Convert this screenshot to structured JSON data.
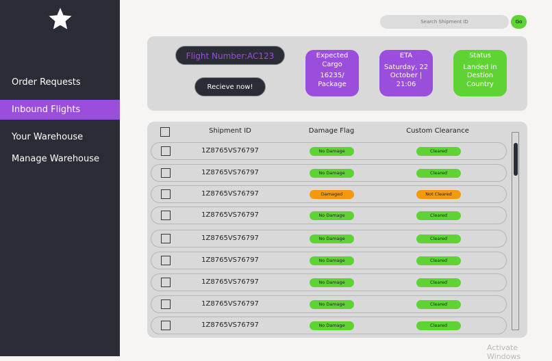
{
  "sidebar": {
    "logo_icon": "star-icon",
    "items": [
      {
        "label": "Order Requests"
      },
      {
        "label": "Inbound Flights",
        "active": true
      },
      {
        "label": "Your Warehouse"
      },
      {
        "label": "Manage Warehouse"
      }
    ]
  },
  "search": {
    "placeholder": "Search Shipment ID",
    "go_label": "Go"
  },
  "flight": {
    "number": "Flight Number:AC123",
    "receive_label": "Recieve now!",
    "cards": [
      {
        "title": "Expected Cargo",
        "value": "16235/ Package",
        "color": "#9b4ddc"
      },
      {
        "title": "ETA",
        "value": "Saturday, 22 October | 21:06",
        "color": "#9b4ddc"
      },
      {
        "title": "Status",
        "value": "Landed in Destion Country",
        "color": "#5fd334"
      }
    ]
  },
  "table": {
    "headers": [
      "Shipment ID",
      "Damage Flag",
      "Custom Clearance"
    ],
    "rows": [
      {
        "id": "1Z8765VS76797",
        "damage": "No Damage",
        "clearance": "Cleared"
      },
      {
        "id": "1Z8765VS76797",
        "damage": "No Damage",
        "clearance": "Cleared"
      },
      {
        "id": "1Z8765VS76797",
        "damage": "Damaged",
        "clearance": "Not Cleared"
      },
      {
        "id": "1Z8765VS76797",
        "damage": "No Damage",
        "clearance": "Cleared"
      },
      {
        "id": "1Z8765VS76797",
        "damage": "No Damage",
        "clearance": "Cleared"
      },
      {
        "id": "1Z8765VS76797",
        "damage": "No Damage",
        "clearance": "Cleared"
      },
      {
        "id": "1Z8765VS76797",
        "damage": "No Damage",
        "clearance": "Cleared"
      },
      {
        "id": "1Z8765VS76797",
        "damage": "No Damage",
        "clearance": "Cleared"
      },
      {
        "id": "1Z8765VS76797",
        "damage": "No Damage",
        "clearance": "Cleared"
      }
    ]
  },
  "colors": {
    "ok": "#5fd334",
    "warn": "#f39a0c",
    "accent": "#9b4ddc",
    "dark": "#2a2c36"
  },
  "watermark": "Activate Windows"
}
